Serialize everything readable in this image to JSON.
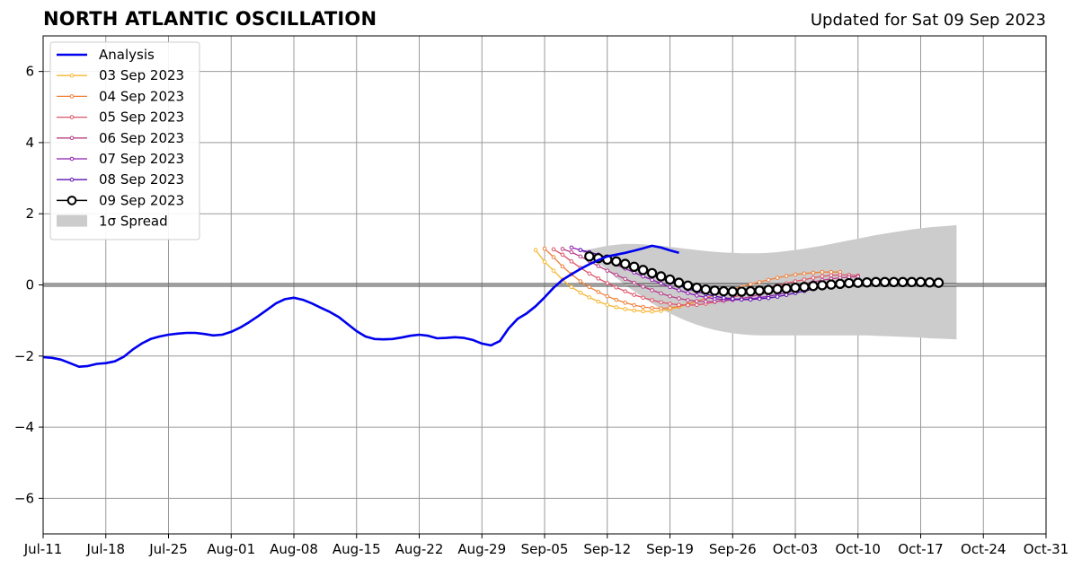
{
  "header": {
    "title": "NORTH ATLANTIC OSCILLATION",
    "updated": "Updated for Sat 09 Sep 2023"
  },
  "chart_data": {
    "type": "line",
    "title": "NORTH ATLANTIC OSCILLATION",
    "subtitle": "Updated for Sat 09 Sep 2023",
    "xlabel": "",
    "ylabel": "",
    "xlim": [
      "2023-07-11",
      "2023-10-31"
    ],
    "ylim": [
      -7,
      7
    ],
    "grid": true,
    "legend_position": "upper-left",
    "x_ticks": [
      {
        "date": "2023-07-11",
        "label": "Jul-11"
      },
      {
        "date": "2023-07-18",
        "label": "Jul-18"
      },
      {
        "date": "2023-07-25",
        "label": "Jul-25"
      },
      {
        "date": "2023-08-01",
        "label": "Aug-01"
      },
      {
        "date": "2023-08-08",
        "label": "Aug-08"
      },
      {
        "date": "2023-08-15",
        "label": "Aug-15"
      },
      {
        "date": "2023-08-22",
        "label": "Aug-22"
      },
      {
        "date": "2023-08-29",
        "label": "Aug-29"
      },
      {
        "date": "2023-09-05",
        "label": "Sep-05"
      },
      {
        "date": "2023-09-12",
        "label": "Sep-12"
      },
      {
        "date": "2023-09-19",
        "label": "Sep-19"
      },
      {
        "date": "2023-09-26",
        "label": "Sep-26"
      },
      {
        "date": "2023-10-03",
        "label": "Oct-03"
      },
      {
        "date": "2023-10-10",
        "label": "Oct-10"
      },
      {
        "date": "2023-10-17",
        "label": "Oct-17"
      },
      {
        "date": "2023-10-24",
        "label": "Oct-24"
      },
      {
        "date": "2023-10-31",
        "label": "Oct-31"
      }
    ],
    "y_ticks": [
      {
        "value": 6,
        "label": "6"
      },
      {
        "value": 4,
        "label": "4"
      },
      {
        "value": 2,
        "label": "2"
      },
      {
        "value": 0,
        "label": "0"
      },
      {
        "value": -2,
        "label": "−2"
      },
      {
        "value": -4,
        "label": "−4"
      },
      {
        "value": -6,
        "label": "−6"
      }
    ],
    "analysis": {
      "name": "Analysis",
      "color": "#0000ee",
      "start_date": "2023-07-11",
      "values": [
        -2.03,
        -2.05,
        -2.1,
        -2.2,
        -2.3,
        -2.28,
        -2.22,
        -2.2,
        -2.15,
        -2.02,
        -1.82,
        -1.65,
        -1.52,
        -1.45,
        -1.4,
        -1.37,
        -1.35,
        -1.35,
        -1.38,
        -1.42,
        -1.4,
        -1.32,
        -1.2,
        -1.05,
        -0.88,
        -0.7,
        -0.52,
        -0.4,
        -0.36,
        -0.42,
        -0.52,
        -0.64,
        -0.76,
        -0.9,
        -1.1,
        -1.3,
        -1.45,
        -1.52,
        -1.53,
        -1.52,
        -1.48,
        -1.43,
        -1.4,
        -1.43,
        -1.5,
        -1.49,
        -1.47,
        -1.49,
        -1.55,
        -1.65,
        -1.7,
        -1.58,
        -1.22,
        -0.95,
        -0.8,
        -0.6,
        -0.35,
        -0.08,
        0.14,
        0.3,
        0.45,
        0.58,
        0.7,
        0.8,
        0.85,
        0.9,
        0.96,
        1.03,
        1.1,
        1.05,
        0.97,
        0.9
      ]
    },
    "forecasts": [
      {
        "name": "03 Sep 2023",
        "color": "#f6b630",
        "start_date": "2023-09-04",
        "values": [
          0.98,
          0.65,
          0.4,
          0.15,
          -0.06,
          -0.22,
          -0.35,
          -0.47,
          -0.56,
          -0.63,
          -0.68,
          -0.72,
          -0.74,
          -0.75,
          -0.73,
          -0.68,
          -0.62,
          -0.55,
          -0.47
        ]
      },
      {
        "name": "04 Sep 2023",
        "color": "#f07f3a",
        "start_date": "2023-09-05",
        "values": [
          1.02,
          0.78,
          0.52,
          0.3,
          0.1,
          -0.06,
          -0.2,
          -0.32,
          -0.42,
          -0.5,
          -0.57,
          -0.62,
          -0.65,
          -0.66,
          -0.65,
          -0.6,
          -0.54,
          -0.46,
          -0.37,
          -0.28,
          -0.2,
          -0.12,
          -0.05,
          0.02,
          0.08,
          0.14,
          0.2,
          0.25,
          0.29,
          0.32,
          0.34,
          0.36,
          0.36,
          0.36
        ]
      },
      {
        "name": "05 Sep 2023",
        "color": "#dd5468",
        "start_date": "2023-09-06",
        "values": [
          1.0,
          0.85,
          0.66,
          0.48,
          0.32,
          0.18,
          0.05,
          -0.07,
          -0.18,
          -0.28,
          -0.36,
          -0.43,
          -0.49,
          -0.53,
          -0.56,
          -0.57,
          -0.56,
          -0.53,
          -0.48,
          -0.42,
          -0.35,
          -0.28,
          -0.22,
          -0.15,
          -0.08,
          -0.02,
          0.04,
          0.1,
          0.15,
          0.2,
          0.24,
          0.27,
          0.28,
          0.28,
          0.26
        ]
      },
      {
        "name": "06 Sep 2023",
        "color": "#b83e86",
        "start_date": "2023-09-07",
        "values": [
          1.01,
          0.92,
          0.8,
          0.67,
          0.53,
          0.4,
          0.28,
          0.17,
          0.06,
          -0.05,
          -0.15,
          -0.24,
          -0.32,
          -0.38,
          -0.43,
          -0.46,
          -0.47,
          -0.47,
          -0.45,
          -0.42,
          -0.38,
          -0.33,
          -0.27,
          -0.21,
          -0.15,
          -0.09,
          -0.03,
          0.03,
          0.08,
          0.13,
          0.17,
          0.2,
          0.22,
          0.23
        ]
      },
      {
        "name": "07 Sep 2023",
        "color": "#8e1fb1",
        "start_date": "2023-09-08",
        "values": [
          1.05,
          0.98,
          0.89,
          0.79,
          0.68,
          0.57,
          0.46,
          0.35,
          0.24,
          0.14,
          0.04,
          -0.06,
          -0.15,
          -0.23,
          -0.3,
          -0.35,
          -0.39,
          -0.41,
          -0.42,
          -0.41,
          -0.39,
          -0.36,
          -0.32,
          -0.27,
          -0.22,
          -0.16,
          -0.11,
          -0.05
        ]
      },
      {
        "name": "08 Sep 2023",
        "color": "#5b0fb0",
        "start_date": "2023-09-09",
        "values": [
          0.98,
          0.92,
          0.85,
          0.77,
          0.68,
          0.58,
          0.48,
          0.38,
          0.28,
          0.18,
          0.08,
          -0.02,
          -0.11,
          -0.19,
          -0.26,
          -0.32,
          -0.36,
          -0.39,
          -0.41,
          -0.41,
          -0.39,
          -0.37,
          -0.33,
          -0.28,
          -0.23,
          -0.17,
          -0.12
        ]
      },
      {
        "name": "09 Sep 2023",
        "color": "#000000",
        "start_date": "2023-09-10",
        "values": [
          0.8,
          0.75,
          0.71,
          0.66,
          0.59,
          0.51,
          0.42,
          0.33,
          0.24,
          0.15,
          0.06,
          -0.02,
          -0.08,
          -0.13,
          -0.16,
          -0.18,
          -0.19,
          -0.19,
          -0.18,
          -0.16,
          -0.14,
          -0.12,
          -0.1,
          -0.08,
          -0.06,
          -0.03,
          -0.01,
          0.01,
          0.03,
          0.05,
          0.06,
          0.07,
          0.08,
          0.08,
          0.08,
          0.08,
          0.08,
          0.08,
          0.07,
          0.06
        ]
      }
    ],
    "spread": {
      "name": "1σ Spread",
      "color": "#cccccc",
      "start_date": "2023-09-09",
      "upper": [
        0.95,
        1.0,
        1.05,
        1.1,
        1.13,
        1.15,
        1.15,
        1.14,
        1.12,
        1.1,
        1.07,
        1.04,
        1.01,
        0.98,
        0.95,
        0.93,
        0.91,
        0.9,
        0.89,
        0.89,
        0.89,
        0.9,
        0.92,
        0.95,
        0.98,
        1.02,
        1.06,
        1.1,
        1.15,
        1.2,
        1.25,
        1.3,
        1.35,
        1.4,
        1.44,
        1.48,
        1.52,
        1.56,
        1.59,
        1.62,
        1.64,
        1.66,
        1.68
      ],
      "lower": [
        0.95,
        0.8,
        0.62,
        0.42,
        0.2,
        0.0,
        -0.18,
        -0.35,
        -0.52,
        -0.67,
        -0.8,
        -0.92,
        -1.03,
        -1.12,
        -1.2,
        -1.27,
        -1.32,
        -1.36,
        -1.39,
        -1.41,
        -1.42,
        -1.42,
        -1.42,
        -1.42,
        -1.42,
        -1.42,
        -1.42,
        -1.42,
        -1.42,
        -1.42,
        -1.42,
        -1.42,
        -1.42,
        -1.43,
        -1.44,
        -1.45,
        -1.46,
        -1.47,
        -1.48,
        -1.5,
        -1.51,
        -1.52,
        -1.53
      ]
    }
  }
}
